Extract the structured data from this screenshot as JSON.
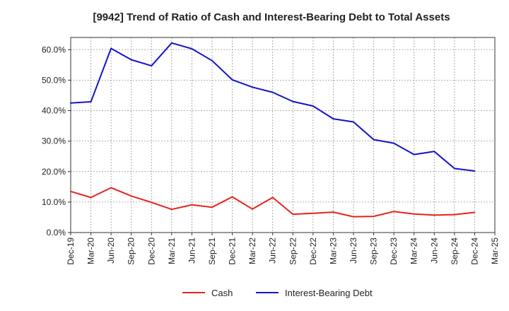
{
  "chart_data": {
    "type": "line",
    "title": "[9942]  Trend of Ratio of Cash and Interest-Bearing Debt to Total Assets",
    "xlabel": "",
    "ylabel": "",
    "x": [
      "Dec-19",
      "Mar-20",
      "Jun-20",
      "Sep-20",
      "Dec-20",
      "Mar-21",
      "Jun-21",
      "Sep-21",
      "Dec-21",
      "Mar-22",
      "Jun-22",
      "Sep-22",
      "Dec-22",
      "Mar-23",
      "Jun-23",
      "Sep-23",
      "Dec-23",
      "Mar-24",
      "Jun-24",
      "Sep-24",
      "Dec-24",
      "Mar-25"
    ],
    "ylim": [
      0,
      64
    ],
    "yticks": [
      0,
      10,
      20,
      30,
      40,
      50,
      60
    ],
    "ytick_labels": [
      "0.0%",
      "10.0%",
      "20.0%",
      "30.0%",
      "40.0%",
      "50.0%",
      "60.0%"
    ],
    "grid": true,
    "legend_position": "bottom-center",
    "series": [
      {
        "name": "Cash",
        "color": "#e8231a",
        "values": [
          13.5,
          11.5,
          14.7,
          12.0,
          9.9,
          7.6,
          9.1,
          8.3,
          11.7,
          7.7,
          11.5,
          6.0,
          6.3,
          6.7,
          5.2,
          5.3,
          6.9,
          6.1,
          5.7,
          5.9,
          6.6,
          null
        ]
      },
      {
        "name": "Interest-Bearing Debt",
        "color": "#1414c8",
        "values": [
          42.5,
          42.9,
          60.4,
          56.7,
          54.7,
          62.2,
          60.3,
          56.4,
          50.1,
          47.7,
          46.0,
          43.0,
          41.5,
          37.3,
          36.3,
          30.5,
          29.3,
          25.6,
          26.6,
          21.0,
          20.2,
          null
        ]
      }
    ]
  }
}
